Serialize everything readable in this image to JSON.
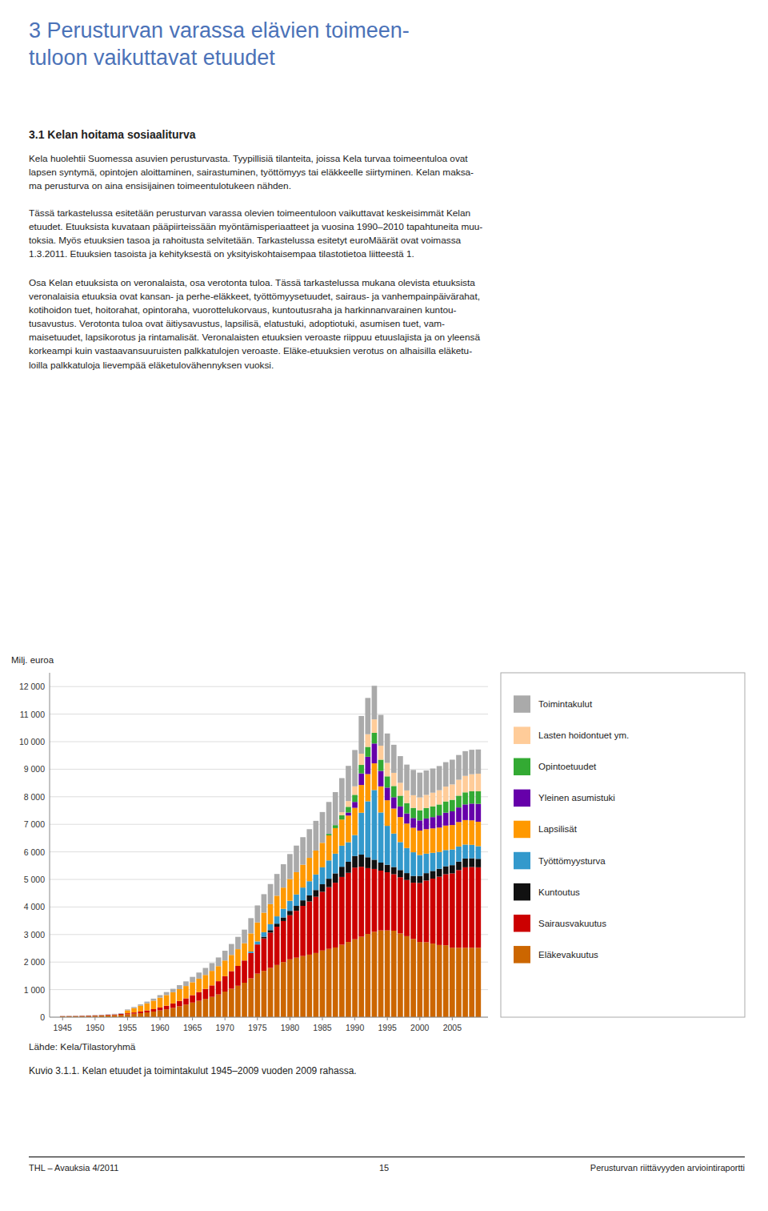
{
  "page_title": "3 Perusturvan varassa elävien toimeen-\ntuloon vaikuttavat etuudet",
  "section_title": "3.1 Kelan hoitama sosiaaliturva",
  "paragraphs": [
    "Kela huolehtii Suomessa asuvien perusturvasta. Tyypillisiä tilanteita, joissa Kela turvaa toimeentuloa ovat\nlapsen syntymä, opintojen aloittaminen, sairastuminen, työttömyys tai eläkkeelle siirtyminen. Kelan maksa-\nma perusturva on aina ensisijainen toimeentulotukeen nähden.",
    "Tässä tarkastelussa esitetään perusturvan varassa olevien toimeentuloon vaikuttavat keskeisimmät Kelan\netuudet. Etuuksista kuvataan pääpiirteissään myöntämisperiaatteet ja vuosina 1990–2010 tapahtuneita muu-\ntoksia. Myös etuuksien tasoa ja rahoitusta selvitetään. Tarkastelussa esitetyt euroMäärät ovat voimassa\n1.3.2011. Etuuksien tasoista ja kehityksestä on yksityiskohtaisempaa tilastotietoa liitteestä 1.",
    "Osa Kelan etuuksista on veronalaista, osa verotonta tuloa. Tässä tarkastelussa mukana olevista etuuksista\nveronalaisia etuuksia ovat kansan- ja perhe-eläkkeet, työttömyysetuudet, sairaus- ja vanhempainpäivärahat,\nkotihoidon tuet, hoitorahat, opintoraha, vuorottelukorvaus, kuntoutusraha ja harkinnanvarainen kuntou-\ntusavustus. Verotonta tuloa ovat äitiysavustus, lapsilisä, elatustuki, adoptiotuki, asumisen tuet, vam-\nmaisetuudet, lapsikorotus ja rintamalisät. Veronalaisten etuuksien veroaste riippuu etuuslajista ja on yleensä\nkorkeampi kuin vastaavansuuruisten palkkatulojen veroaste. Eläke-etuuksien verotus on alhaisilla eläketu-\nloilla palkkatuloja lievempää eläketulovähennyksen vuoksi."
  ],
  "source_note": "Lähde: Kela/Tilastoryhmä",
  "caption": "Kuvio 3.1.1. Kelan etuudet ja toimintakulut 1945–2009 vuoden 2009 rahassa.",
  "footer_left": "THL – Avauksia 4/2011",
  "footer_center": "15",
  "footer_right": "Perusturvan riittävyyden arviointiraportti",
  "chart_data": {
    "type": "bar",
    "stacked": true,
    "ylabel": "Milj. euroa",
    "grid": true,
    "legend": "right",
    "x": [
      1945,
      1946,
      1947,
      1948,
      1949,
      1950,
      1951,
      1952,
      1953,
      1954,
      1955,
      1956,
      1957,
      1958,
      1959,
      1960,
      1961,
      1962,
      1963,
      1964,
      1965,
      1966,
      1967,
      1968,
      1969,
      1970,
      1971,
      1972,
      1973,
      1974,
      1975,
      1976,
      1977,
      1978,
      1979,
      1980,
      1981,
      1982,
      1983,
      1984,
      1985,
      1986,
      1987,
      1988,
      1989,
      1990,
      1991,
      1992,
      1993,
      1994,
      1995,
      1996,
      1997,
      1998,
      1999,
      2000,
      2001,
      2002,
      2003,
      2004,
      2005,
      2006,
      2007,
      2008,
      2009
    ],
    "xlim": [
      1943.0,
      2010.5
    ],
    "xticks": [
      1945,
      1950,
      1955,
      1960,
      1965,
      1970,
      1975,
      1980,
      1985,
      1990,
      1995,
      2000,
      2005
    ],
    "ylim": [
      0,
      12500
    ],
    "yticks": [
      0,
      {
        "value": 1000,
        "label": "1 000"
      },
      {
        "value": 2000,
        "label": "2 000"
      },
      {
        "value": 3000,
        "label": "3 000"
      },
      {
        "value": 4000,
        "label": "4 000"
      },
      {
        "value": 5000,
        "label": "5 000"
      },
      {
        "value": 6000,
        "label": "6 000"
      },
      {
        "value": 7000,
        "label": "7 000"
      },
      {
        "value": 8000,
        "label": "8 000"
      },
      {
        "value": 9000,
        "label": "9 000"
      },
      {
        "value": 10000,
        "label": "10 000"
      },
      {
        "value": 11000,
        "label": "11 000"
      },
      {
        "value": 12000,
        "label": "12 000"
      }
    ],
    "series": [
      {
        "name": "Eläkevakuutus",
        "color": "#CC6600",
        "values": [
          30,
          33,
          37,
          40,
          44,
          50,
          57,
          65,
          75,
          88,
          105,
          125,
          148,
          175,
          205,
          245,
          288,
          338,
          395,
          458,
          530,
          595,
          665,
          738,
          825,
          930,
          1035,
          1140,
          1250,
          1410,
          1580,
          1680,
          1790,
          1895,
          2000,
          2100,
          2160,
          2220,
          2270,
          2330,
          2420,
          2480,
          2530,
          2630,
          2730,
          2830,
          2920,
          3020,
          3100,
          3150,
          3150,
          3140,
          3040,
          2940,
          2840,
          2730,
          2720,
          2670,
          2620,
          2610,
          2520,
          2520,
          2520,
          2520,
          2520
        ]
      },
      {
        "name": "Sairausvakuutus",
        "color": "#CC0000",
        "values": [
          8,
          9,
          10,
          12,
          13,
          15,
          17,
          20,
          24,
          28,
          36,
          46,
          58,
          70,
          86,
          106,
          128,
          160,
          195,
          225,
          270,
          315,
          360,
          415,
          480,
          558,
          636,
          720,
          806,
          918,
          1060,
          1180,
          1280,
          1390,
          1490,
          1600,
          1700,
          1820,
          1930,
          2040,
          2130,
          2240,
          2350,
          2460,
          2510,
          2600,
          2540,
          2390,
          2280,
          2170,
          2110,
          2050,
          2040,
          2040,
          2040,
          2140,
          2240,
          2360,
          2480,
          2580,
          2700,
          2820,
          2920,
          2930,
          2920
        ]
      },
      {
        "name": "Kuntoutus",
        "color": "#111111",
        "values": [
          0,
          0,
          0,
          0,
          0,
          0,
          0,
          0,
          0,
          0,
          0,
          0,
          0,
          0,
          0,
          0,
          0,
          0,
          0,
          0,
          0,
          0,
          0,
          0,
          0,
          0,
          0,
          0,
          0,
          0,
          0,
          60,
          90,
          110,
          130,
          160,
          180,
          200,
          220,
          245,
          275,
          305,
          340,
          370,
          400,
          420,
          440,
          395,
          335,
          290,
          270,
          260,
          260,
          250,
          248,
          258,
          268,
          278,
          288,
          288,
          298,
          308,
          318,
          318,
          308
        ]
      },
      {
        "name": "Työttömyysturva",
        "color": "#3399CC",
        "values": [
          0,
          0,
          0,
          0,
          0,
          0,
          0,
          0,
          0,
          0,
          0,
          0,
          0,
          0,
          0,
          0,
          0,
          0,
          0,
          0,
          0,
          0,
          0,
          0,
          0,
          0,
          0,
          0,
          0,
          55,
          110,
          165,
          215,
          265,
          315,
          365,
          415,
          465,
          515,
          565,
          615,
          665,
          715,
          765,
          710,
          760,
          1520,
          2030,
          2530,
          1820,
          1415,
          1215,
          1015,
          910,
          858,
          758,
          708,
          658,
          608,
          588,
          568,
          548,
          508,
          488,
          458
        ]
      },
      {
        "name": "Lapsilisät",
        "color": "#FF9900",
        "values": [
          0,
          0,
          0,
          0,
          0,
          0,
          0,
          0,
          0,
          0,
          108,
          158,
          208,
          258,
          308,
          358,
          388,
          408,
          428,
          448,
          468,
          488,
          508,
          528,
          548,
          568,
          588,
          608,
          628,
          658,
          688,
          708,
          728,
          748,
          768,
          788,
          808,
          828,
          848,
          868,
          888,
          908,
          928,
          948,
          968,
          988,
          1008,
          988,
          968,
          948,
          928,
          908,
          908,
          888,
          888,
          888,
          888,
          888,
          888,
          888,
          888,
          888,
          888,
          888,
          888
        ]
      },
      {
        "name": "Yleinen asumistuki",
        "color": "#6600AA",
        "values": [
          0,
          0,
          0,
          0,
          0,
          0,
          0,
          0,
          0,
          0,
          0,
          0,
          0,
          0,
          0,
          0,
          0,
          0,
          0,
          0,
          0,
          0,
          0,
          0,
          0,
          0,
          0,
          0,
          0,
          0,
          0,
          0,
          0,
          0,
          0,
          0,
          0,
          0,
          0,
          0,
          0,
          0,
          0,
          0,
          110,
          215,
          420,
          630,
          720,
          560,
          460,
          410,
          388,
          366,
          356,
          368,
          388,
          408,
          438,
          468,
          498,
          528,
          568,
          608,
          648
        ]
      },
      {
        "name": "Opintoetuudet",
        "color": "#33AA33",
        "values": [
          0,
          0,
          0,
          0,
          0,
          0,
          0,
          0,
          0,
          0,
          0,
          0,
          0,
          0,
          0,
          0,
          0,
          0,
          0,
          0,
          0,
          0,
          0,
          0,
          0,
          0,
          0,
          0,
          0,
          0,
          0,
          0,
          0,
          0,
          0,
          0,
          0,
          0,
          0,
          0,
          0,
          55,
          108,
          158,
          208,
          258,
          308,
          358,
          388,
          408,
          408,
          408,
          388,
          378,
          368,
          368,
          378,
          388,
          398,
          408,
          418,
          428,
          438,
          448,
          458
        ]
      },
      {
        "name": "Lasten hoidontuet ym.",
        "color": "#FFCC99",
        "values": [
          0,
          0,
          0,
          0,
          0,
          0,
          0,
          0,
          0,
          0,
          0,
          0,
          0,
          0,
          0,
          0,
          0,
          0,
          0,
          0,
          0,
          0,
          0,
          0,
          0,
          0,
          0,
          0,
          0,
          0,
          0,
          0,
          0,
          0,
          0,
          0,
          0,
          0,
          0,
          0,
          0,
          0,
          0,
          108,
          208,
          308,
          408,
          458,
          488,
          508,
          488,
          478,
          468,
          458,
          458,
          468,
          478,
          498,
          518,
          538,
          558,
          578,
          598,
          618,
          638
        ]
      },
      {
        "name": "Toimintakulut",
        "color": "#AAAAAA",
        "values": [
          8,
          9,
          10,
          11,
          12,
          14,
          16,
          19,
          22,
          26,
          32,
          40,
          50,
          62,
          74,
          92,
          108,
          124,
          145,
          168,
          195,
          222,
          254,
          284,
          314,
          356,
          398,
          448,
          494,
          554,
          618,
          672,
          730,
          790,
          848,
          908,
          965,
          1000,
          1040,
          1078,
          1118,
          1158,
          1198,
          1238,
          1278,
          1318,
          1368,
          1318,
          1218,
          1118,
          1068,
          1018,
          968,
          938,
          918,
          898,
          888,
          878,
          878,
          888,
          898,
          898,
          898,
          888,
          878
        ]
      }
    ]
  }
}
